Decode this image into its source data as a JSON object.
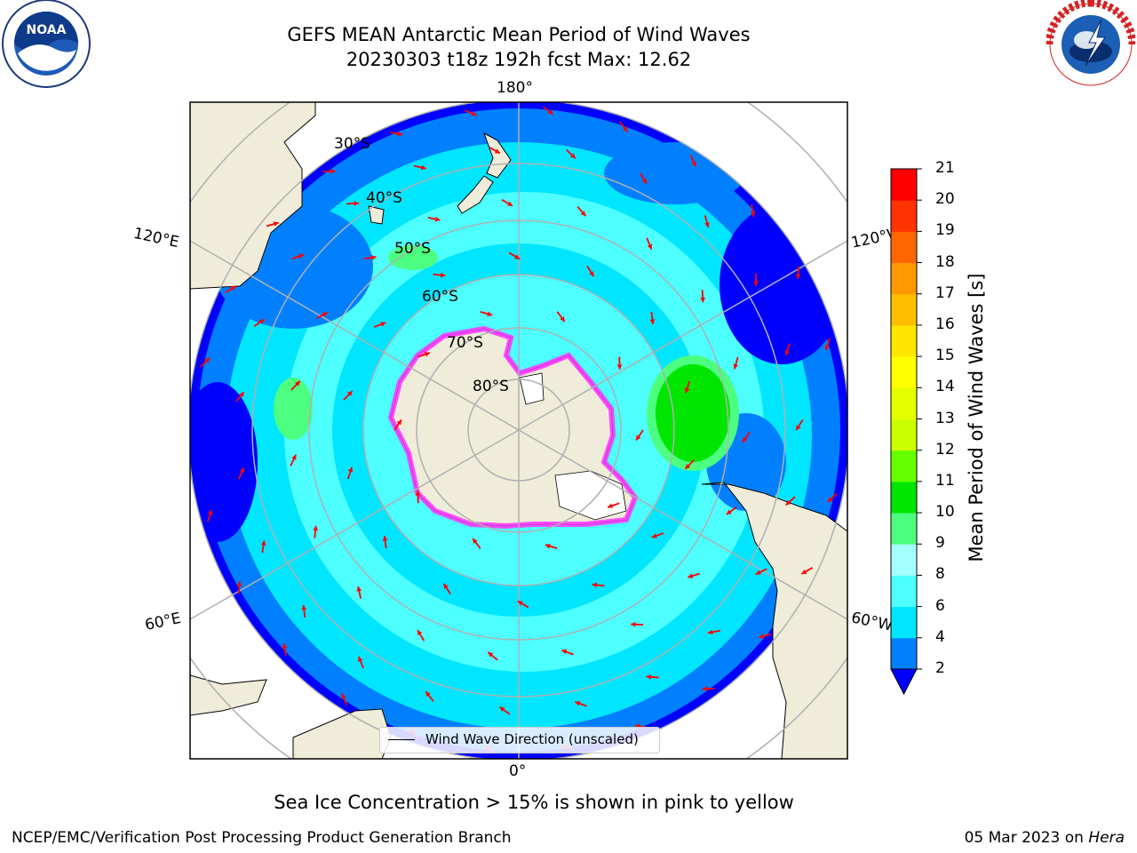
{
  "header": {
    "title_line1": "GEFS MEAN Antarctic Mean Period of Wind Waves",
    "title_line2": "20230303 t18z 192h fcst   Max: 12.62"
  },
  "map": {
    "projection": "south-polar-stereographic",
    "longitude_labels": {
      "top": "180°",
      "upper_left": "120°E",
      "upper_right": "120°W",
      "lower_left": "60°E",
      "lower_right": "60°W",
      "bottom": "0°"
    },
    "latitude_labels": [
      "30°S",
      "40°S",
      "50°S",
      "60°S",
      "70°S",
      "80°S"
    ],
    "legend_label": "Wind Wave Direction (unscaled)",
    "arrow_color": "#ff0000",
    "land_color": "#efecd9",
    "sea_ice_color": "#ff66ff"
  },
  "colorbar": {
    "title": "Mean Period of Wind Waves [s]",
    "ticks": [
      "2",
      "4",
      "6",
      "8",
      "9",
      "10",
      "11",
      "12",
      "13",
      "14",
      "15",
      "16",
      "17",
      "18",
      "19",
      "20",
      "21"
    ],
    "colors": [
      "#0080ff",
      "#00e6ff",
      "#4dffff",
      "#a6ffff",
      "#4dff80",
      "#00e600",
      "#66ff00",
      "#ccff00",
      "#e6ff00",
      "#ffff00",
      "#ffe600",
      "#ffbf00",
      "#ff9900",
      "#ff6600",
      "#ff3300",
      "#ff0000"
    ],
    "under_color": "#0000ff"
  },
  "footer": {
    "note": "Sea Ice Concentration > 15% is shown in pink to yellow",
    "credit": "NCEP/EMC/Verification Post Processing Product Generation Branch",
    "date_text": "05 Mar 2023 on ",
    "machine": "Hera"
  },
  "logos": {
    "left": "NOAA",
    "right": "NATIONAL WEATHER SERVICE"
  }
}
